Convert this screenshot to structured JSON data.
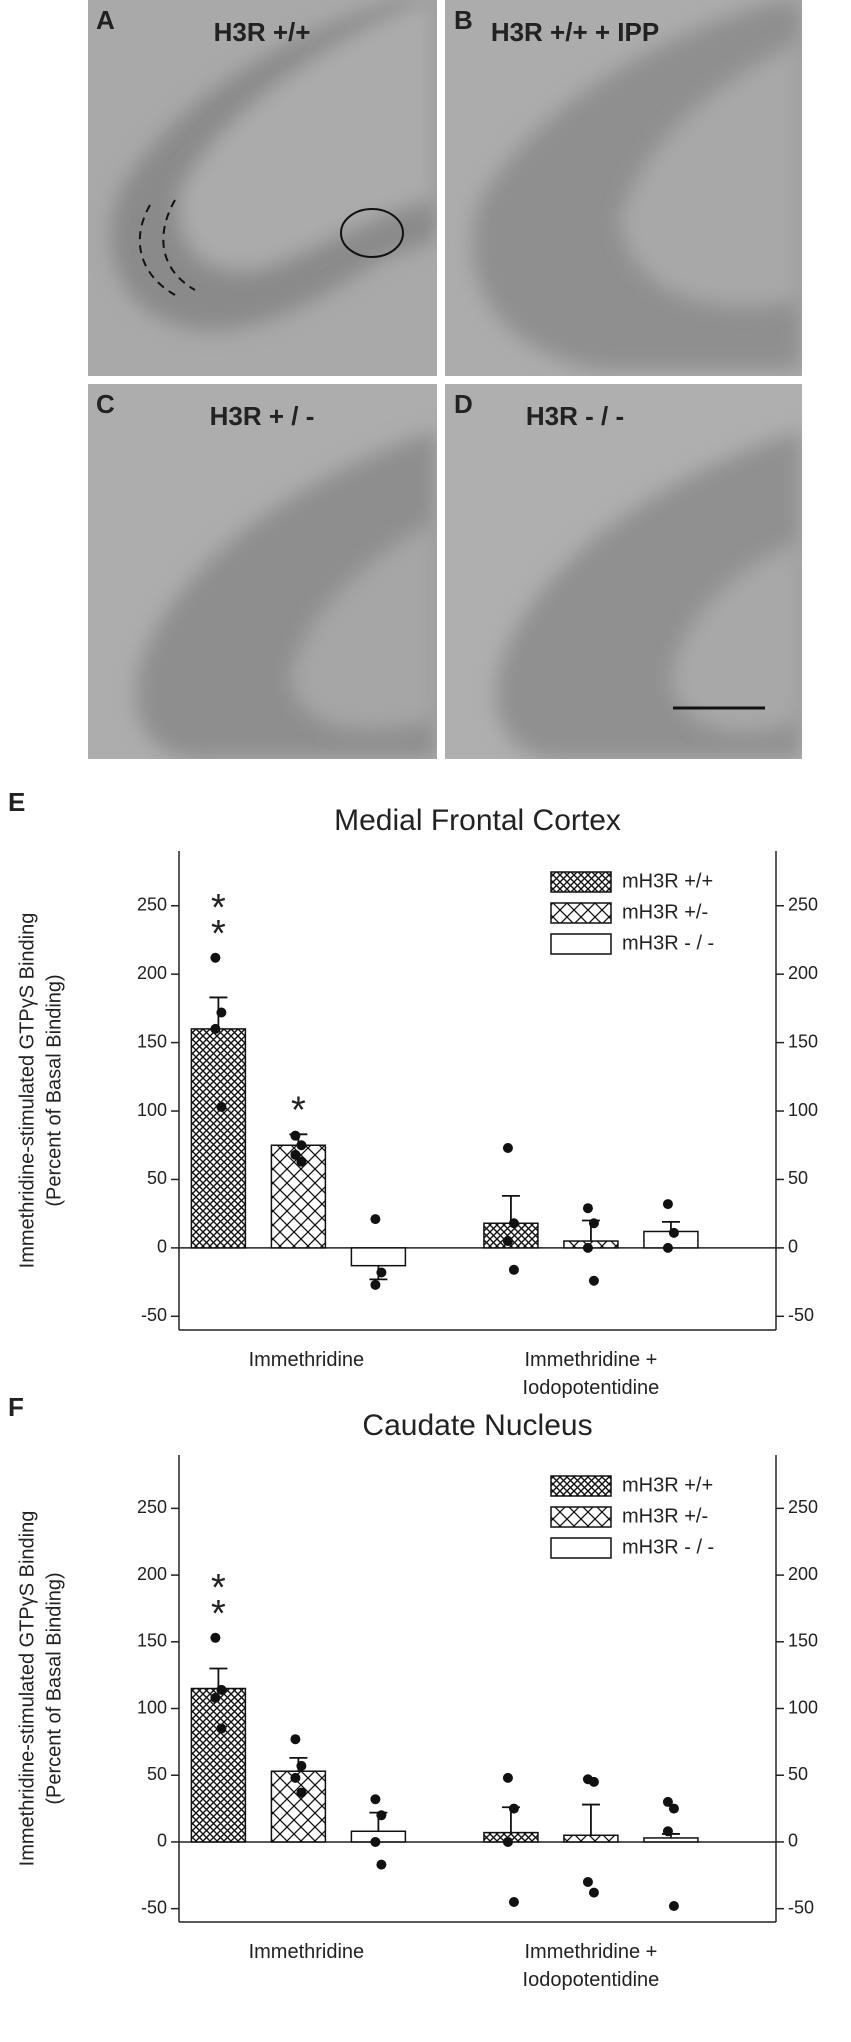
{
  "panels": [
    {
      "letter": "A",
      "label": "H3R +/+"
    },
    {
      "letter": "B",
      "label": "H3R +/+  + IPP"
    },
    {
      "letter": "C",
      "label": "H3R + / -"
    },
    {
      "letter": "D",
      "label": "H3R - / -"
    }
  ],
  "chart_data": [
    {
      "type": "bar",
      "letter": "E",
      "title": "Medial Frontal Cortex",
      "ylabel": [
        "Immethridine-stimulated GTPγS Binding",
        "(Percent of Basal Binding)"
      ],
      "categories": [
        "Immethridine",
        "Immethridine + Iodopotentidine"
      ],
      "ylim": [
        -60,
        290
      ],
      "yticks": [
        -50,
        0,
        50,
        100,
        150,
        200,
        250
      ],
      "y2lim": [
        -60,
        290
      ],
      "y2ticks": [
        -50,
        0,
        50,
        100,
        150,
        200,
        250
      ],
      "legend": "upper right",
      "series": [
        {
          "name": "mH3R +/+",
          "pattern": "crosshatch",
          "values": [
            160,
            18
          ],
          "errors": [
            23,
            20
          ],
          "points": [
            [
              212,
              172,
              160,
              103
            ],
            [
              73,
              18,
              5,
              -16
            ]
          ]
        },
        {
          "name": "mH3R +/-",
          "pattern": "cross",
          "values": [
            75,
            5
          ],
          "errors": [
            8,
            15
          ],
          "points": [
            [
              82,
              75,
              68,
              63
            ],
            [
              29,
              18,
              0,
              -24
            ]
          ]
        },
        {
          "name": "mH3R - / -",
          "pattern": "none",
          "values": [
            -13,
            12
          ],
          "errors": [
            10,
            7
          ],
          "points": [
            [
              21,
              -18,
              -27
            ],
            [
              32,
              11,
              0
            ]
          ]
        }
      ],
      "annotations": [
        {
          "text": "*",
          "series": 0,
          "category": 0
        },
        {
          "text": "*",
          "series": 0,
          "category": 0
        },
        {
          "text": "*",
          "series": 1,
          "category": 0
        }
      ]
    },
    {
      "type": "bar",
      "letter": "F",
      "title": "Caudate Nucleus",
      "ylabel": [
        "Immethridine-stimulated GTPγS Binding",
        "(Percent of Basal Binding)"
      ],
      "categories": [
        "Immethridine",
        "Immethridine + Iodopotentidine"
      ],
      "ylim": [
        -60,
        290
      ],
      "yticks": [
        -50,
        0,
        50,
        100,
        150,
        200,
        250
      ],
      "y2lim": [
        -60,
        290
      ],
      "y2ticks": [
        -50,
        0,
        50,
        100,
        150,
        200,
        250
      ],
      "legend": "upper right",
      "series": [
        {
          "name": "mH3R +/+",
          "pattern": "crosshatch",
          "values": [
            115,
            7
          ],
          "errors": [
            15,
            19
          ],
          "points": [
            [
              153,
              114,
              108,
              85
            ],
            [
              48,
              25,
              0,
              -45
            ]
          ]
        },
        {
          "name": "mH3R +/-",
          "pattern": "cross",
          "values": [
            53,
            5
          ],
          "errors": [
            10,
            23
          ],
          "points": [
            [
              77,
              57,
              48,
              37
            ],
            [
              47,
              45,
              -30,
              -38
            ]
          ]
        },
        {
          "name": "mH3R - / -",
          "pattern": "none",
          "values": [
            8,
            3
          ],
          "errors": [
            14,
            3
          ],
          "points": [
            [
              32,
              20,
              0,
              -17
            ],
            [
              30,
              25,
              8,
              -48
            ]
          ]
        }
      ],
      "annotations": [
        {
          "text": "*",
          "series": 0,
          "category": 0
        },
        {
          "text": "*",
          "series": 0,
          "category": 0
        }
      ]
    }
  ]
}
